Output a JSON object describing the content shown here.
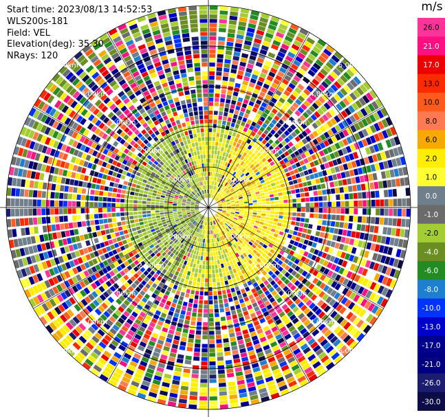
{
  "info": {
    "start_time": "Start time: 2023/08/13 14:52:53",
    "station": "WLS200s-181",
    "field": "Field: VEL",
    "elevation": "Elevation(deg): 35.30",
    "nrays": "NRays: 120"
  },
  "chart_data": {
    "type": "heatmap",
    "projection": "polar-ppi",
    "n_rays": 120,
    "range_rings_km": [
      "1.00km",
      "2.00km",
      "3.00km",
      "4.00km",
      "5.00km"
    ],
    "colorbar": {
      "unit": "m/s",
      "ticks": [
        "26.0",
        "21.0",
        "17.0",
        "13.0",
        "10.0",
        "8.0",
        "6.0",
        "2.0",
        "1.0",
        "0.0",
        "-1.0",
        "-2.0",
        "-4.0",
        "-6.0",
        "-8.0",
        "-10.0",
        "-13.0",
        "-17.0",
        "-21.0",
        "-26.0",
        "-30.0"
      ],
      "colors": [
        "#ff3399",
        "#ff0f7f",
        "#ee0000",
        "#ff2a00",
        "#ff5a1e",
        "#ff7a50",
        "#f7a900",
        "#ffee00",
        "#ffff33",
        "#6f7f8c",
        "#6b6b6b",
        "#a4cc33",
        "#6b8e23",
        "#228b22",
        "#1e7fd0",
        "#0033ff",
        "#0000cd",
        "#00008b",
        "#000080",
        "#1c1c70",
        "#0c0c46"
      ]
    }
  }
}
